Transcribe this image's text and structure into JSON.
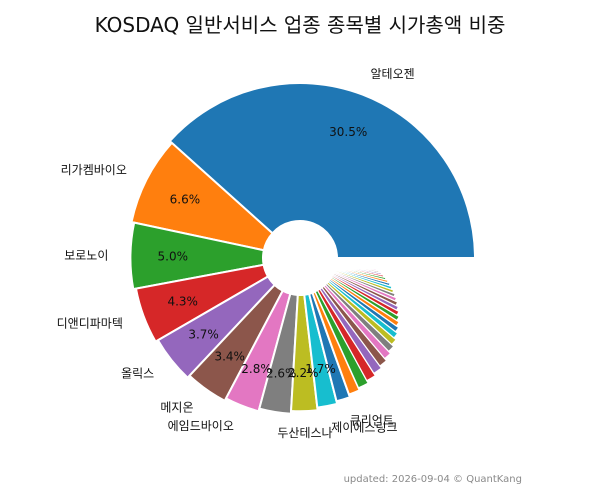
{
  "chart_data": {
    "type": "pie",
    "title": "KOSDAQ 일반서비스 업종 종목별 시가총액 비중",
    "slices": [
      {
        "label": "알테오젠",
        "value": 30.5,
        "color": "#1f77b4",
        "pct_label": "30.5%"
      },
      {
        "label": "리가켐바이오",
        "value": 6.6,
        "color": "#ff7f0e",
        "pct_label": "6.6%"
      },
      {
        "label": "보로노이",
        "value": 5.0,
        "color": "#2ca02c",
        "pct_label": "5.0%"
      },
      {
        "label": "디앤디파마텍",
        "value": 4.3,
        "color": "#d62728",
        "pct_label": "4.3%"
      },
      {
        "label": "올릭스",
        "value": 3.7,
        "color": "#9467bd",
        "pct_label": "3.7%"
      },
      {
        "label": "메지온",
        "value": 3.4,
        "color": "#8c564b",
        "pct_label": "3.4%"
      },
      {
        "label": "에임드바이오",
        "value": 2.8,
        "color": "#e377c2",
        "pct_label": "2.8%"
      },
      {
        "label": "",
        "value": 2.6,
        "color": "#7f7f7f",
        "pct_label": "2.6%"
      },
      {
        "label": "두산테스나",
        "value": 2.2,
        "color": "#bcbd22",
        "pct_label": "2.2%"
      },
      {
        "label": "제이에스링크",
        "value": 1.7,
        "color": "#17becf",
        "pct_label": "1.7%"
      },
      {
        "label": "큐리언트",
        "value": 1.2,
        "color": "#1f77b4",
        "pct_label": ""
      },
      {
        "label": "",
        "value": 1.0,
        "color": "#ff7f0e",
        "pct_label": ""
      },
      {
        "label": "",
        "value": 0.95,
        "color": "#2ca02c",
        "pct_label": ""
      },
      {
        "label": "",
        "value": 0.9,
        "color": "#d62728",
        "pct_label": ""
      },
      {
        "label": "",
        "value": 0.85,
        "color": "#9467bd",
        "pct_label": ""
      },
      {
        "label": "",
        "value": 0.8,
        "color": "#8c564b",
        "pct_label": ""
      },
      {
        "label": "",
        "value": 0.75,
        "color": "#e377c2",
        "pct_label": ""
      },
      {
        "label": "",
        "value": 0.7,
        "color": "#7f7f7f",
        "pct_label": ""
      },
      {
        "label": "",
        "value": 0.65,
        "color": "#bcbd22",
        "pct_label": ""
      },
      {
        "label": "",
        "value": 0.6,
        "color": "#17becf",
        "pct_label": ""
      },
      {
        "label": "",
        "value": 0.55,
        "color": "#1f77b4",
        "pct_label": ""
      },
      {
        "label": "",
        "value": 0.52,
        "color": "#ff7f0e",
        "pct_label": ""
      },
      {
        "label": "",
        "value": 0.5,
        "color": "#2ca02c",
        "pct_label": ""
      },
      {
        "label": "",
        "value": 0.48,
        "color": "#d62728",
        "pct_label": ""
      },
      {
        "label": "",
        "value": 0.46,
        "color": "#9467bd",
        "pct_label": ""
      },
      {
        "label": "",
        "value": 0.44,
        "color": "#8c564b",
        "pct_label": ""
      },
      {
        "label": "",
        "value": 0.42,
        "color": "#e377c2",
        "pct_label": ""
      },
      {
        "label": "",
        "value": 0.4,
        "color": "#7f7f7f",
        "pct_label": ""
      },
      {
        "label": "",
        "value": 0.38,
        "color": "#bcbd22",
        "pct_label": ""
      },
      {
        "label": "",
        "value": 0.36,
        "color": "#17becf",
        "pct_label": ""
      },
      {
        "label": "",
        "value": 0.34,
        "color": "#1f77b4",
        "pct_label": ""
      },
      {
        "label": "",
        "value": 0.32,
        "color": "#ff7f0e",
        "pct_label": ""
      },
      {
        "label": "",
        "value": 0.3,
        "color": "#2ca02c",
        "pct_label": ""
      },
      {
        "label": "",
        "value": 0.28,
        "color": "#d62728",
        "pct_label": ""
      },
      {
        "label": "",
        "value": 0.26,
        "color": "#9467bd",
        "pct_label": ""
      },
      {
        "label": "",
        "value": 0.24,
        "color": "#8c564b",
        "pct_label": ""
      },
      {
        "label": "",
        "value": 0.22,
        "color": "#e377c2",
        "pct_label": ""
      },
      {
        "label": "",
        "value": 0.2,
        "color": "#7f7f7f",
        "pct_label": ""
      },
      {
        "label": "",
        "value": 0.19,
        "color": "#bcbd22",
        "pct_label": ""
      },
      {
        "label": "",
        "value": 0.18,
        "color": "#17becf",
        "pct_label": ""
      },
      {
        "label": "",
        "value": 0.17,
        "color": "#1f77b4",
        "pct_label": ""
      },
      {
        "label": "",
        "value": 0.16,
        "color": "#ff7f0e",
        "pct_label": ""
      },
      {
        "label": "",
        "value": 0.15,
        "color": "#2ca02c",
        "pct_label": ""
      },
      {
        "label": "",
        "value": 0.14,
        "color": "#d62728",
        "pct_label": ""
      },
      {
        "label": "",
        "value": 0.13,
        "color": "#9467bd",
        "pct_label": ""
      },
      {
        "label": "",
        "value": 0.12,
        "color": "#8c564b",
        "pct_label": ""
      },
      {
        "label": "",
        "value": 0.11,
        "color": "#e377c2",
        "pct_label": ""
      },
      {
        "label": "",
        "value": 0.1,
        "color": "#7f7f7f",
        "pct_label": ""
      },
      {
        "label": "",
        "value": 0.1,
        "color": "#bcbd22",
        "pct_label": ""
      },
      {
        "label": "",
        "value": 0.1,
        "color": "#17becf",
        "pct_label": ""
      }
    ]
  },
  "footer": "updated: 2026-09-04 © QuantKang"
}
